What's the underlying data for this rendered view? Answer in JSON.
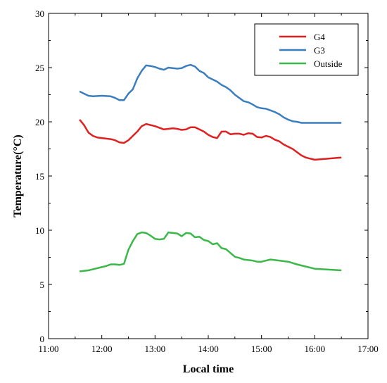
{
  "chart_data": {
    "type": "line",
    "xlabel": "Local time",
    "ylabel": "Temperature(°C)",
    "x_ticks": [
      "11:00",
      "12:00",
      "13:00",
      "14:00",
      "15:00",
      "16:00",
      "17:00"
    ],
    "xlim": [
      "11:00",
      "17:00"
    ],
    "ylim": [
      0,
      30
    ],
    "y_ticks": [
      0,
      5,
      10,
      15,
      20,
      25,
      30
    ],
    "grid": false,
    "legend_position": "top-right",
    "series": [
      {
        "name": "G4",
        "color": "#e02020",
        "points": [
          [
            "11:35",
            20.2
          ],
          [
            "11:40",
            19.7
          ],
          [
            "11:45",
            19.0
          ],
          [
            "11:50",
            18.7
          ],
          [
            "11:55",
            18.55
          ],
          [
            "12:00",
            18.5
          ],
          [
            "12:10",
            18.4
          ],
          [
            "12:15",
            18.3
          ],
          [
            "12:20",
            18.1
          ],
          [
            "12:25",
            18.05
          ],
          [
            "12:30",
            18.3
          ],
          [
            "12:35",
            18.7
          ],
          [
            "12:40",
            19.1
          ],
          [
            "12:45",
            19.6
          ],
          [
            "12:50",
            19.8
          ],
          [
            "13:00",
            19.6
          ],
          [
            "13:10",
            19.3
          ],
          [
            "13:15",
            19.35
          ],
          [
            "13:20",
            19.4
          ],
          [
            "13:25",
            19.35
          ],
          [
            "13:30",
            19.25
          ],
          [
            "13:35",
            19.3
          ],
          [
            "13:40",
            19.5
          ],
          [
            "13:45",
            19.5
          ],
          [
            "13:50",
            19.3
          ],
          [
            "13:55",
            19.1
          ],
          [
            "14:00",
            18.8
          ],
          [
            "14:05",
            18.6
          ],
          [
            "14:10",
            18.5
          ],
          [
            "14:15",
            19.1
          ],
          [
            "14:20",
            19.1
          ],
          [
            "14:25",
            18.85
          ],
          [
            "14:30",
            18.9
          ],
          [
            "14:35",
            18.9
          ],
          [
            "14:40",
            18.8
          ],
          [
            "14:45",
            18.95
          ],
          [
            "14:50",
            18.9
          ],
          [
            "14:55",
            18.6
          ],
          [
            "15:00",
            18.55
          ],
          [
            "15:05",
            18.7
          ],
          [
            "15:10",
            18.6
          ],
          [
            "15:15",
            18.35
          ],
          [
            "15:20",
            18.2
          ],
          [
            "15:25",
            17.9
          ],
          [
            "15:30",
            17.7
          ],
          [
            "15:35",
            17.5
          ],
          [
            "15:40",
            17.2
          ],
          [
            "15:45",
            16.9
          ],
          [
            "15:50",
            16.7
          ],
          [
            "16:00",
            16.5
          ],
          [
            "16:30",
            16.7
          ]
        ]
      },
      {
        "name": "G3",
        "color": "#3a7ebf",
        "points": [
          [
            "11:35",
            22.8
          ],
          [
            "11:40",
            22.6
          ],
          [
            "11:45",
            22.4
          ],
          [
            "11:50",
            22.35
          ],
          [
            "12:00",
            22.4
          ],
          [
            "12:10",
            22.35
          ],
          [
            "12:15",
            22.2
          ],
          [
            "12:20",
            22.0
          ],
          [
            "12:25",
            22.0
          ],
          [
            "12:30",
            22.6
          ],
          [
            "12:35",
            23.0
          ],
          [
            "12:40",
            24.0
          ],
          [
            "12:45",
            24.7
          ],
          [
            "12:50",
            25.2
          ],
          [
            "12:55",
            25.15
          ],
          [
            "13:00",
            25.05
          ],
          [
            "13:05",
            24.9
          ],
          [
            "13:10",
            24.8
          ],
          [
            "13:15",
            25.0
          ],
          [
            "13:20",
            24.95
          ],
          [
            "13:25",
            24.9
          ],
          [
            "13:30",
            24.95
          ],
          [
            "13:35",
            25.15
          ],
          [
            "13:40",
            25.25
          ],
          [
            "13:45",
            25.1
          ],
          [
            "13:50",
            24.7
          ],
          [
            "13:55",
            24.5
          ],
          [
            "14:00",
            24.1
          ],
          [
            "14:05",
            23.9
          ],
          [
            "14:10",
            23.7
          ],
          [
            "14:15",
            23.4
          ],
          [
            "14:20",
            23.2
          ],
          [
            "14:25",
            22.9
          ],
          [
            "14:30",
            22.5
          ],
          [
            "14:35",
            22.2
          ],
          [
            "14:40",
            21.9
          ],
          [
            "14:45",
            21.8
          ],
          [
            "14:50",
            21.6
          ],
          [
            "14:55",
            21.35
          ],
          [
            "15:00",
            21.25
          ],
          [
            "15:05",
            21.2
          ],
          [
            "15:10",
            21.05
          ],
          [
            "15:15",
            20.9
          ],
          [
            "15:20",
            20.7
          ],
          [
            "15:25",
            20.4
          ],
          [
            "15:30",
            20.2
          ],
          [
            "15:35",
            20.05
          ],
          [
            "15:40",
            20.0
          ],
          [
            "15:45",
            19.9
          ],
          [
            "16:30",
            19.9
          ]
        ]
      },
      {
        "name": "Outside",
        "color": "#3cb84a",
        "points": [
          [
            "11:35",
            6.2
          ],
          [
            "11:40",
            6.25
          ],
          [
            "11:45",
            6.3
          ],
          [
            "11:50",
            6.4
          ],
          [
            "12:00",
            6.6
          ],
          [
            "12:05",
            6.7
          ],
          [
            "12:10",
            6.85
          ],
          [
            "12:15",
            6.85
          ],
          [
            "12:20",
            6.8
          ],
          [
            "12:25",
            6.9
          ],
          [
            "12:30",
            8.2
          ],
          [
            "12:35",
            9.0
          ],
          [
            "12:40",
            9.65
          ],
          [
            "12:45",
            9.8
          ],
          [
            "12:50",
            9.75
          ],
          [
            "12:55",
            9.5
          ],
          [
            "13:00",
            9.2
          ],
          [
            "13:05",
            9.15
          ],
          [
            "13:10",
            9.2
          ],
          [
            "13:15",
            9.8
          ],
          [
            "13:20",
            9.75
          ],
          [
            "13:25",
            9.7
          ],
          [
            "13:30",
            9.45
          ],
          [
            "13:35",
            9.75
          ],
          [
            "13:40",
            9.7
          ],
          [
            "13:45",
            9.35
          ],
          [
            "13:50",
            9.4
          ],
          [
            "13:55",
            9.1
          ],
          [
            "14:00",
            9.0
          ],
          [
            "14:05",
            8.7
          ],
          [
            "14:10",
            8.8
          ],
          [
            "14:15",
            8.35
          ],
          [
            "14:20",
            8.25
          ],
          [
            "14:25",
            7.9
          ],
          [
            "14:30",
            7.55
          ],
          [
            "14:35",
            7.45
          ],
          [
            "14:40",
            7.3
          ],
          [
            "14:45",
            7.25
          ],
          [
            "14:50",
            7.2
          ],
          [
            "14:55",
            7.1
          ],
          [
            "15:00",
            7.1
          ],
          [
            "15:10",
            7.3
          ],
          [
            "15:20",
            7.2
          ],
          [
            "15:30",
            7.1
          ],
          [
            "15:40",
            6.85
          ],
          [
            "15:50",
            6.65
          ],
          [
            "16:00",
            6.45
          ],
          [
            "16:30",
            6.3
          ]
        ]
      }
    ]
  }
}
